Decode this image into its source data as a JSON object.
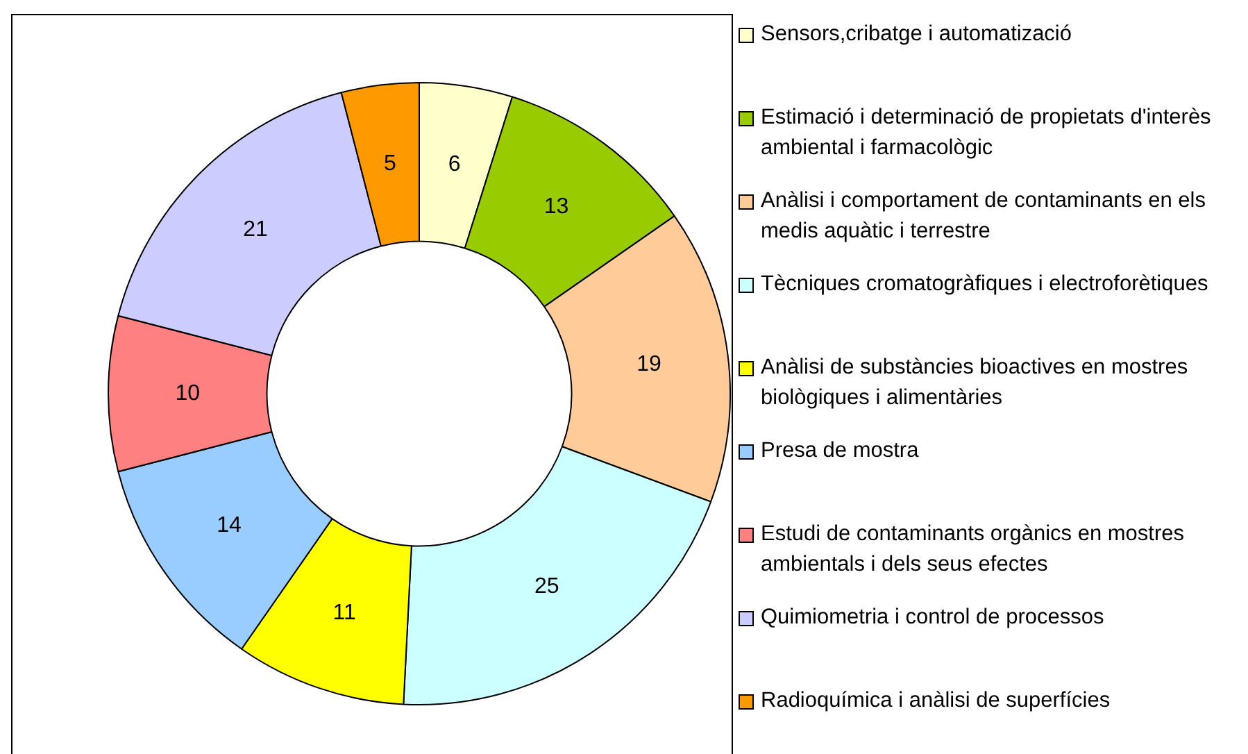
{
  "chart_data": {
    "type": "donut",
    "categories": [
      "Sensors,cribatge i automatizació",
      "Estimació i determinació de propietats d'interès ambiental i farmacològic",
      "Anàlisi i comportament de contaminants en els medis aquàtic i terrestre",
      "Tècniques cromatogràfiques i electroforètiques",
      "Anàlisi de substàncies bioactives en mostres biològiques i alimentàries",
      "Presa de mostra",
      "Estudi de contaminants orgànics en mostres ambientals i dels seus efectes",
      "Quimiometria i control de processos",
      "Radioquímica i anàlisi de superfícies"
    ],
    "values": [
      6,
      13,
      19,
      25,
      11,
      14,
      10,
      21,
      5
    ],
    "colors": [
      "#ffffcc",
      "#99cc00",
      "#ffcc99",
      "#ccffff",
      "#ffff00",
      "#99ccff",
      "#ff8080",
      "#ccccff",
      "#ff9900"
    ],
    "data_labels": true,
    "legend": "right"
  }
}
